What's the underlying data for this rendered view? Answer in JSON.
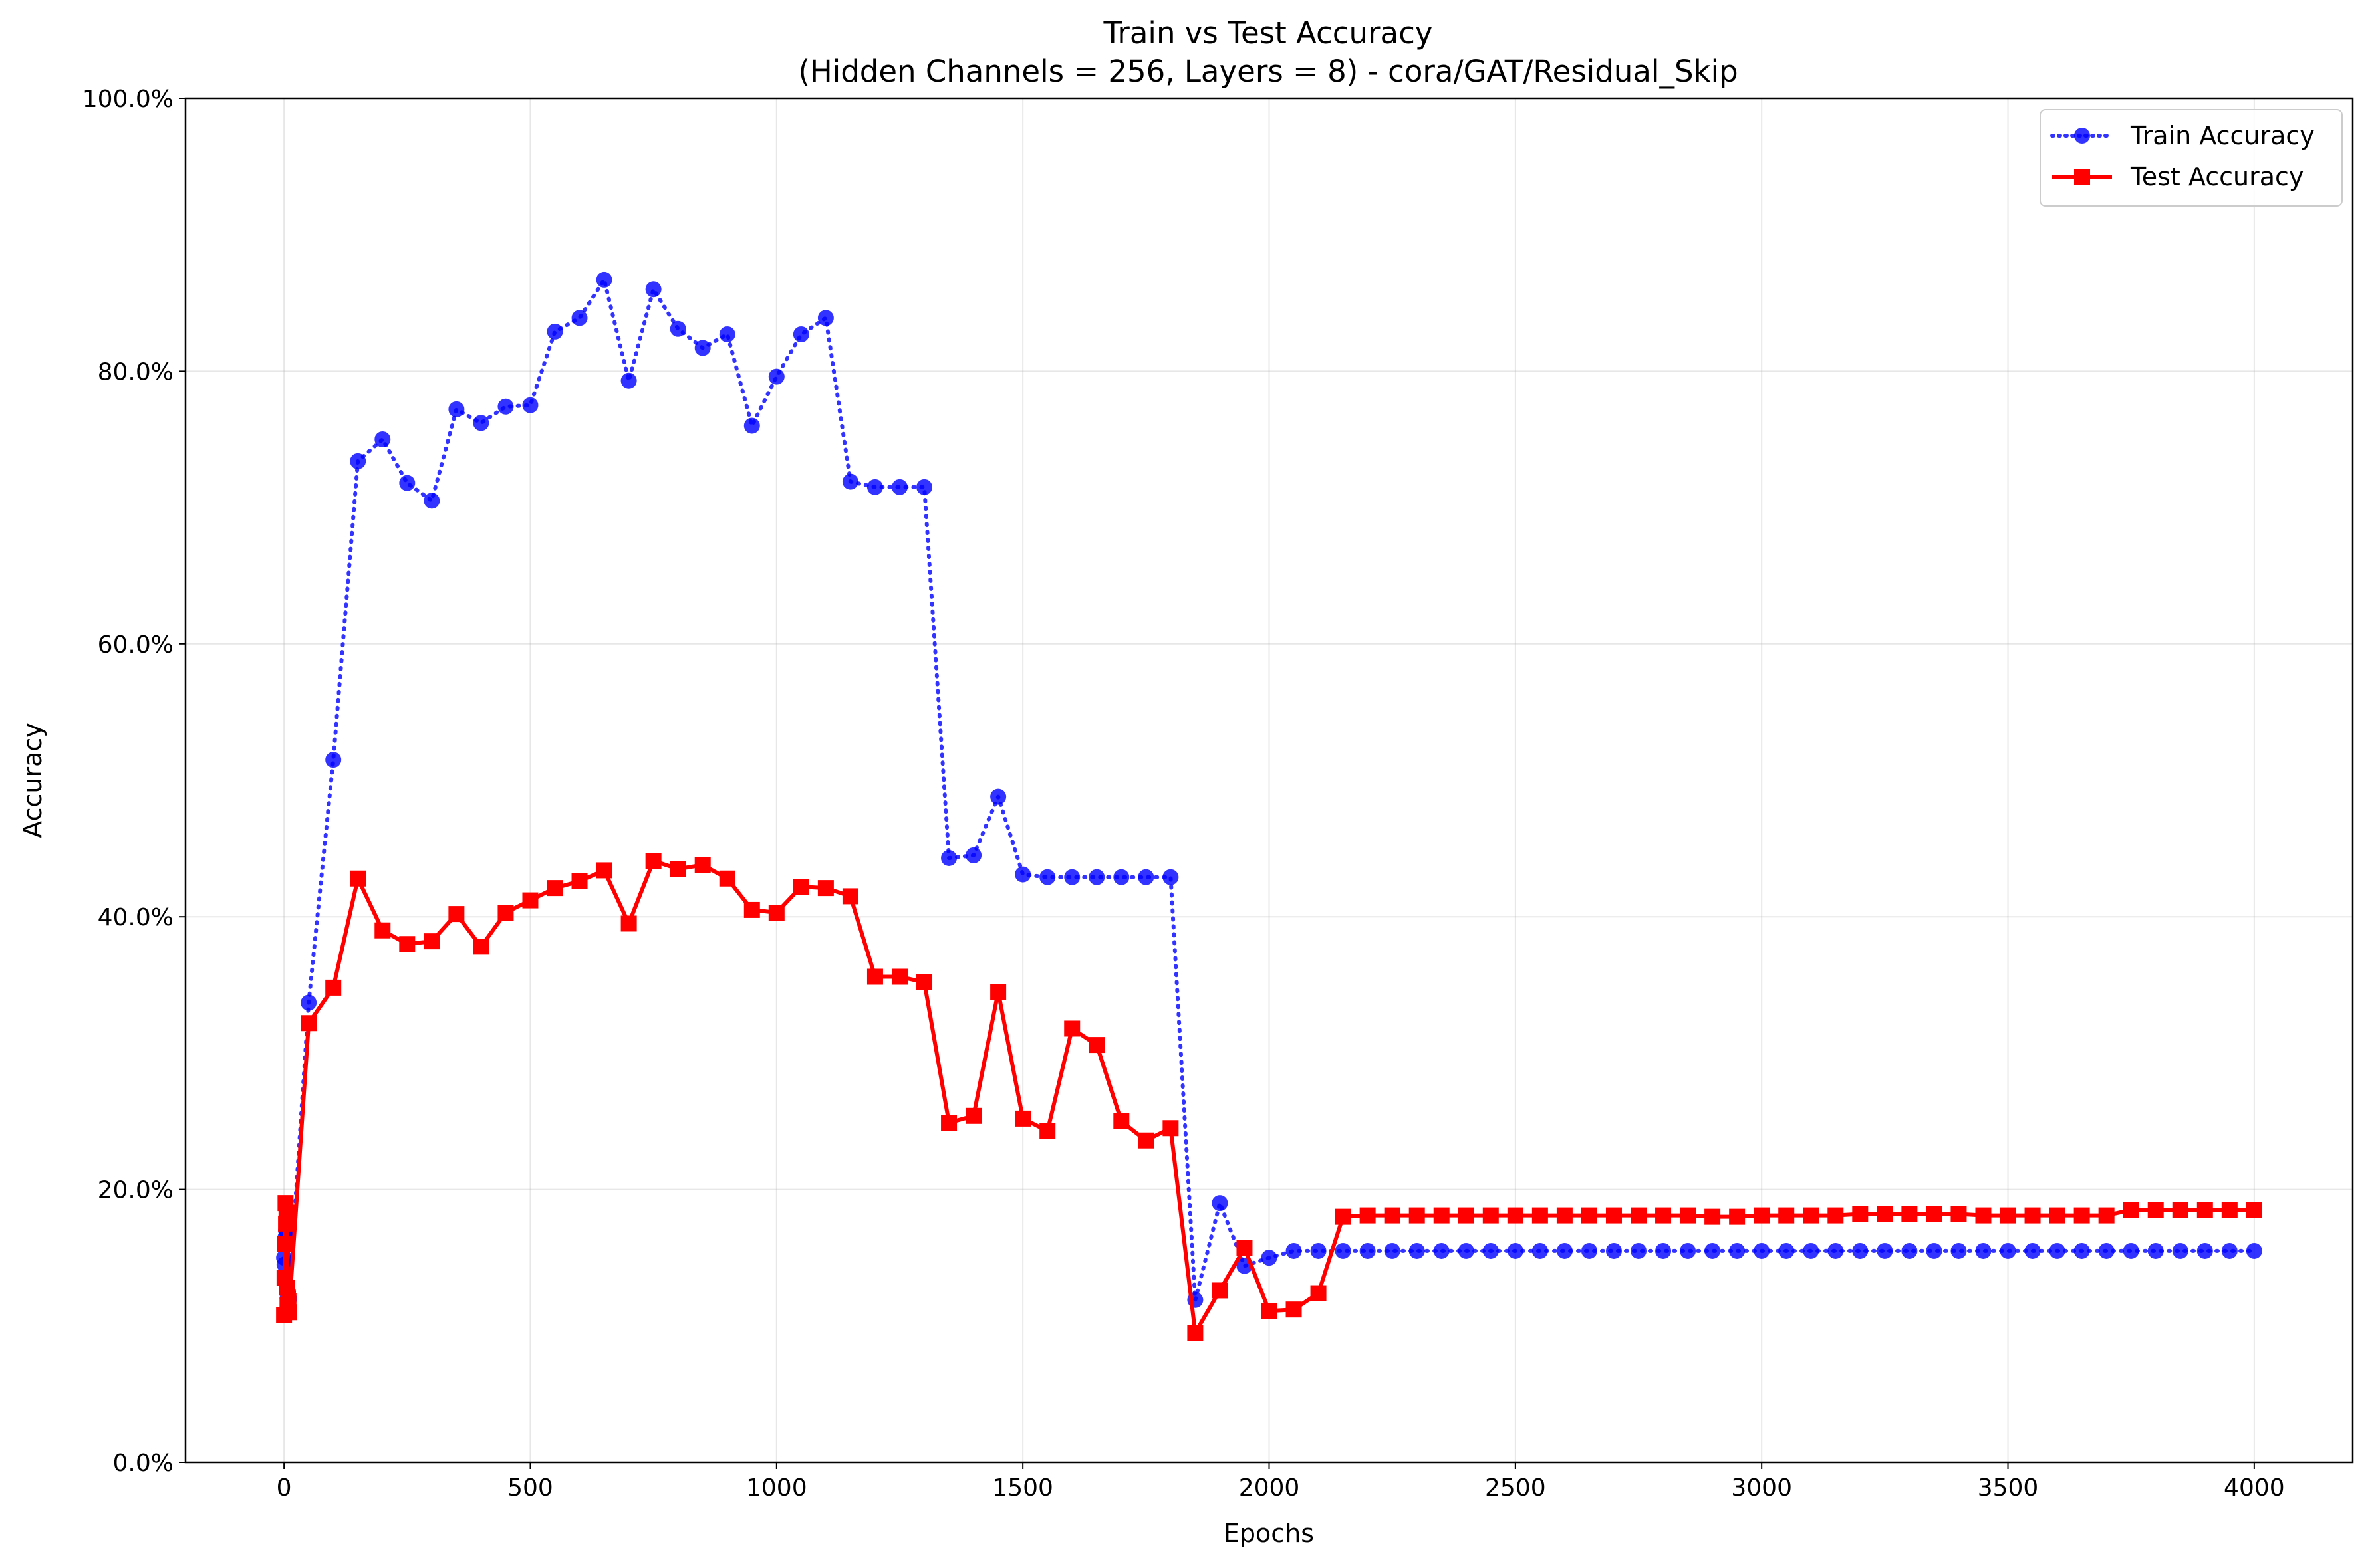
{
  "chart_data": {
    "type": "line",
    "title": "Train vs Test Accuracy",
    "subtitle": "(Hidden Channels = 256, Layers = 8) - cora/GAT/Residual_Skip",
    "xlabel": "Epochs",
    "ylabel": "Accuracy",
    "xlim": [
      -200,
      4200
    ],
    "ylim": [
      0,
      1
    ],
    "x_ticks": [
      0,
      500,
      1000,
      1500,
      2000,
      2500,
      3000,
      3500,
      4000
    ],
    "x_tick_labels": [
      "0",
      "500",
      "1000",
      "1500",
      "2000",
      "2500",
      "3000",
      "3500",
      "4000"
    ],
    "y_ticks": [
      0,
      0.2,
      0.4,
      0.6,
      0.8,
      1.0
    ],
    "y_tick_labels": [
      "0.0%",
      "20.0%",
      "40.0%",
      "60.0%",
      "80.0%",
      "100.0%"
    ],
    "grid": true,
    "legend_position": "top-right",
    "x": [
      0,
      1,
      2,
      3,
      4,
      5,
      6,
      7,
      8,
      9,
      10,
      50,
      100,
      150,
      200,
      250,
      300,
      350,
      400,
      450,
      500,
      550,
      600,
      650,
      700,
      750,
      800,
      850,
      900,
      950,
      1000,
      1050,
      1100,
      1150,
      1200,
      1250,
      1300,
      1350,
      1400,
      1450,
      1500,
      1550,
      1600,
      1650,
      1700,
      1750,
      1800,
      1850,
      1900,
      1950,
      2000,
      2050,
      2100,
      2150,
      2200,
      2250,
      2300,
      2350,
      2400,
      2450,
      2500,
      2550,
      2600,
      2650,
      2700,
      2750,
      2800,
      2850,
      2900,
      2950,
      3000,
      3050,
      3100,
      3150,
      3200,
      3250,
      3300,
      3350,
      3400,
      3450,
      3500,
      3550,
      3600,
      3650,
      3700,
      3750,
      3800,
      3850,
      3900,
      3950,
      4000
    ],
    "series": [
      {
        "name": "Train Accuracy",
        "color": "#0000ff",
        "line_style": "dotted",
        "marker": "circle",
        "values": [
          0.15,
          0.145,
          0.16,
          0.165,
          0.17,
          0.175,
          0.13,
          0.12,
          0.125,
          0.118,
          0.12,
          0.337,
          0.515,
          0.734,
          0.75,
          0.718,
          0.705,
          0.772,
          0.762,
          0.774,
          0.775,
          0.829,
          0.839,
          0.867,
          0.793,
          0.86,
          0.831,
          0.817,
          0.827,
          0.76,
          0.796,
          0.827,
          0.839,
          0.719,
          0.715,
          0.715,
          0.715,
          0.443,
          0.445,
          0.488,
          0.431,
          0.429,
          0.429,
          0.429,
          0.429,
          0.429,
          0.429,
          0.119,
          0.19,
          0.144,
          0.15,
          0.155,
          0.155,
          0.155,
          0.155,
          0.155,
          0.155,
          0.155,
          0.155,
          0.155,
          0.155,
          0.155,
          0.155,
          0.155,
          0.155,
          0.155,
          0.155,
          0.155,
          0.155,
          0.155,
          0.155,
          0.155,
          0.155,
          0.155,
          0.155,
          0.155,
          0.155,
          0.155,
          0.155,
          0.155,
          0.155,
          0.155,
          0.155,
          0.155,
          0.155,
          0.155,
          0.155,
          0.155,
          0.155,
          0.155,
          0.155
        ]
      },
      {
        "name": "Test Accuracy",
        "color": "#ff0000",
        "line_style": "solid",
        "marker": "square",
        "values": [
          0.108,
          0.135,
          0.16,
          0.19,
          0.175,
          0.183,
          0.128,
          0.115,
          0.112,
          0.118,
          0.11,
          0.322,
          0.348,
          0.428,
          0.39,
          0.38,
          0.382,
          0.402,
          0.378,
          0.403,
          0.412,
          0.421,
          0.426,
          0.434,
          0.395,
          0.441,
          0.435,
          0.438,
          0.428,
          0.405,
          0.403,
          0.422,
          0.421,
          0.415,
          0.356,
          0.356,
          0.352,
          0.249,
          0.254,
          0.345,
          0.252,
          0.243,
          0.318,
          0.306,
          0.25,
          0.236,
          0.245,
          0.095,
          0.126,
          0.157,
          0.111,
          0.112,
          0.124,
          0.18,
          0.181,
          0.181,
          0.181,
          0.181,
          0.181,
          0.181,
          0.181,
          0.181,
          0.181,
          0.181,
          0.181,
          0.181,
          0.181,
          0.181,
          0.18,
          0.18,
          0.181,
          0.181,
          0.181,
          0.181,
          0.182,
          0.182,
          0.182,
          0.182,
          0.182,
          0.181,
          0.181,
          0.181,
          0.181,
          0.181,
          0.181,
          0.185,
          0.185,
          0.185,
          0.185,
          0.185,
          0.185
        ]
      }
    ]
  }
}
